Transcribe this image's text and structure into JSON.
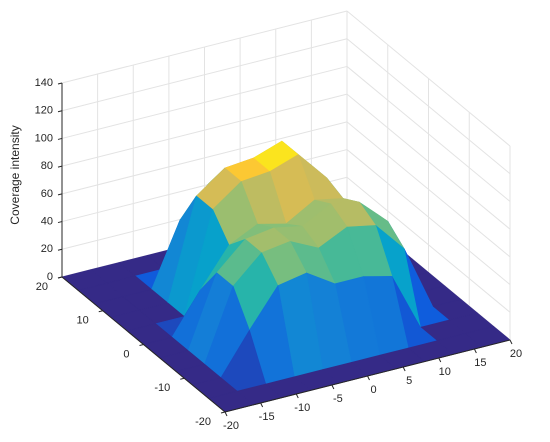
{
  "chart_data": {
    "type": "surface",
    "zlabel": "Coverage intensity",
    "x": [
      -20,
      -16,
      -12,
      -8,
      -4,
      0,
      4,
      8,
      12,
      16,
      20
    ],
    "y": [
      -20,
      -16,
      -12,
      -8,
      -4,
      0,
      4,
      8,
      12,
      16,
      20
    ],
    "z": [
      [
        0,
        0,
        0,
        0,
        0,
        0,
        0,
        0,
        0,
        0,
        0
      ],
      [
        0,
        0,
        0,
        0,
        0,
        0,
        0,
        0,
        0,
        0,
        0
      ],
      [
        0,
        0,
        29,
        56,
        60,
        47,
        47,
        42,
        0,
        0,
        0
      ],
      [
        0,
        0,
        51,
        70,
        73,
        63,
        73,
        69,
        47,
        0,
        0
      ],
      [
        0,
        0,
        51,
        70,
        73,
        69,
        80,
        76,
        57,
        0,
        0
      ],
      [
        0,
        0,
        29,
        56,
        66,
        61,
        73,
        69,
        47,
        0,
        0
      ],
      [
        0,
        0,
        0,
        72,
        87,
        89,
        96,
        74,
        0,
        0,
        0
      ],
      [
        0,
        0,
        0,
        72,
        87,
        89,
        96,
        74,
        0,
        0,
        0
      ],
      [
        0,
        0,
        0,
        45,
        66,
        60,
        65,
        22,
        0,
        0,
        0
      ],
      [
        0,
        0,
        0,
        0,
        0,
        0,
        0,
        0,
        0,
        0,
        0
      ],
      [
        0,
        0,
        0,
        0,
        0,
        0,
        0,
        0,
        0,
        0,
        0
      ]
    ],
    "xlim": [
      -20,
      20
    ],
    "xticks": [
      -20,
      -15,
      -10,
      -5,
      0,
      5,
      10,
      15,
      20
    ],
    "ylim": [
      -20,
      20
    ],
    "yticks": [
      -20,
      -10,
      0,
      10,
      20
    ],
    "zlim": [
      0,
      140
    ],
    "zticks": [
      0,
      20,
      40,
      60,
      80,
      100,
      120,
      140
    ],
    "colormap": "parula",
    "grid": true
  }
}
